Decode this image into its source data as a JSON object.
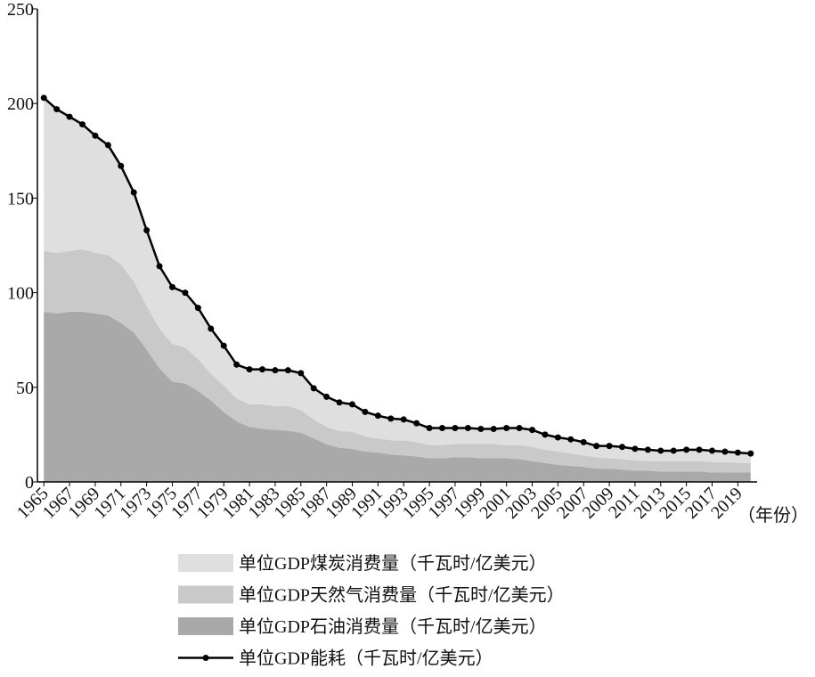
{
  "chart_data": {
    "type": "stacked-area-line",
    "x": [
      1965,
      1966,
      1967,
      1968,
      1969,
      1970,
      1971,
      1972,
      1973,
      1974,
      1975,
      1976,
      1977,
      1978,
      1979,
      1980,
      1981,
      1982,
      1983,
      1984,
      1985,
      1986,
      1987,
      1988,
      1989,
      1990,
      1991,
      1992,
      1993,
      1994,
      1995,
      1996,
      1997,
      1998,
      1999,
      2000,
      2001,
      2002,
      2003,
      2004,
      2005,
      2006,
      2007,
      2008,
      2009,
      2010,
      2011,
      2012,
      2013,
      2014,
      2015,
      2016,
      2017,
      2018,
      2019,
      2020
    ],
    "x_label": "（年份）",
    "xlim": [
      1964.5,
      2020.5
    ],
    "xticks": [
      1965,
      1967,
      1969,
      1971,
      1973,
      1975,
      1977,
      1979,
      1981,
      1983,
      1985,
      1987,
      1989,
      1991,
      1993,
      1995,
      1997,
      1999,
      2001,
      2003,
      2005,
      2007,
      2009,
      2011,
      2013,
      2015,
      2017,
      2019
    ],
    "ylim": [
      0,
      250
    ],
    "yticks": [
      0,
      50,
      100,
      150,
      200,
      250
    ],
    "series": [
      {
        "name": "单位GDP石油消费量（千瓦时/亿美元）",
        "color": "#a9a9a9",
        "kind": "area",
        "values": [
          90,
          89,
          90,
          90,
          89,
          88,
          84,
          79,
          70,
          60,
          53,
          52,
          48,
          43,
          37,
          32,
          29,
          28,
          27.5,
          27,
          26,
          23,
          20,
          18,
          17.5,
          16,
          15.5,
          14.5,
          14,
          13.5,
          12.5,
          12.5,
          13,
          13,
          12.5,
          12.5,
          12.5,
          12,
          11,
          10,
          9,
          8.5,
          8,
          7,
          7,
          6.5,
          6,
          6,
          5.5,
          5.5,
          5.5,
          5.5,
          5,
          5,
          5,
          5
        ]
      },
      {
        "name": "单位GDP天然气消费量（千瓦时/亿美元）",
        "color": "#c9c9c9",
        "kind": "area",
        "values": [
          32,
          32,
          32,
          33,
          32,
          32,
          31,
          27,
          23,
          21,
          20,
          19,
          17,
          14,
          14,
          12,
          12,
          13,
          12.5,
          13,
          12,
          10,
          9,
          9,
          9,
          8,
          7.5,
          7.5,
          8,
          7.5,
          7,
          7,
          7,
          7,
          7.5,
          7.5,
          7,
          7.5,
          7.5,
          7,
          7,
          6.5,
          6,
          6,
          5.5,
          5.5,
          5.5,
          5,
          5.5,
          5.5,
          5.5,
          5.5,
          5.5,
          5.5,
          5,
          5
        ]
      },
      {
        "name": "单位GDP煤炭消费量（千瓦时/亿美元）",
        "color": "#dfdfdf",
        "kind": "area",
        "values": [
          81,
          76,
          71,
          66,
          62,
          58,
          52,
          47,
          40,
          33,
          30,
          29,
          27,
          24,
          21,
          18,
          18.5,
          18.5,
          19,
          19,
          19.5,
          16.5,
          16,
          15,
          14.5,
          13,
          12,
          11.5,
          11,
          10,
          9,
          9,
          8.5,
          8.5,
          8,
          8,
          9,
          9,
          9,
          8,
          7.5,
          7.5,
          7,
          6,
          6.5,
          6.5,
          6,
          6,
          5.5,
          5.5,
          6,
          6,
          6,
          5.5,
          5.5,
          5
        ]
      },
      {
        "name": "单位GDP能耗（千瓦时/亿美元）",
        "color": "#000000",
        "kind": "line",
        "values": [
          203,
          197,
          193,
          189,
          183,
          178,
          167,
          153,
          133,
          114,
          103,
          100,
          92,
          81,
          72,
          62,
          59.5,
          59.5,
          59,
          59,
          57.5,
          49.5,
          45,
          42,
          41,
          37,
          35,
          33.5,
          33,
          31,
          28.5,
          28.5,
          28.5,
          28.5,
          28,
          28,
          28.5,
          28.5,
          27.5,
          25,
          23.5,
          22.5,
          21,
          19,
          19,
          18.5,
          17.5,
          17,
          16.5,
          16.5,
          17,
          17,
          16.5,
          16,
          15.5,
          15
        ]
      }
    ]
  }
}
